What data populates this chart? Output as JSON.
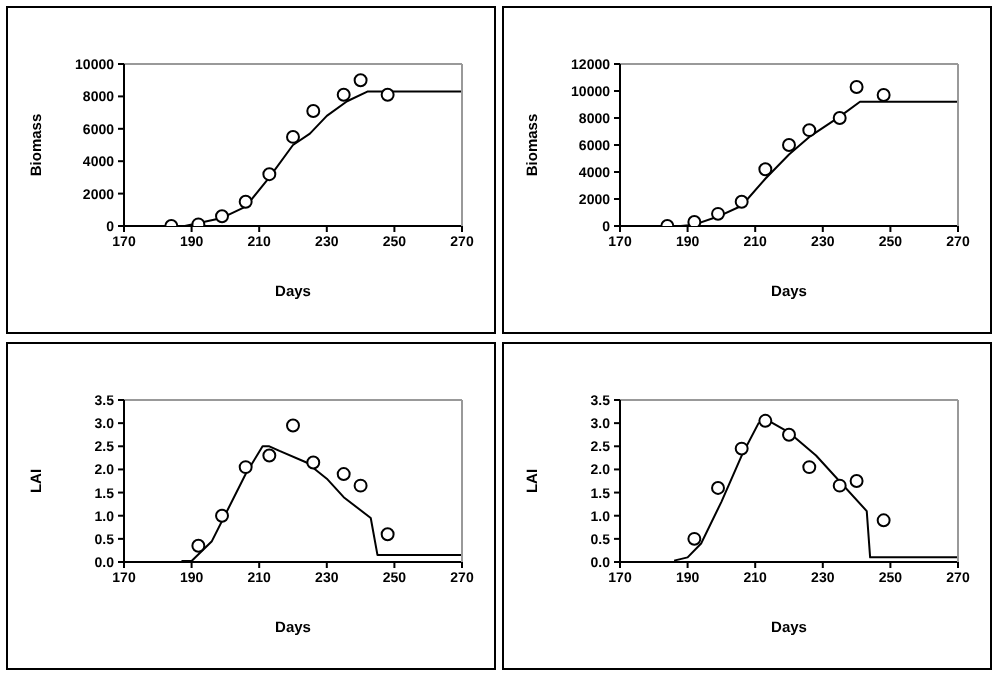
{
  "chart_data": [
    {
      "type": "scatter",
      "xlabel": "Days",
      "ylabel": "Biomass",
      "xlim": [
        170,
        270
      ],
      "xticks": [
        170,
        190,
        210,
        230,
        250,
        270
      ],
      "ylim": [
        0,
        10000
      ],
      "yticks": [
        0,
        2000,
        4000,
        6000,
        8000,
        10000
      ],
      "series": [
        {
          "color": "#000000",
          "marker": "circle",
          "x": [
            184,
            192,
            199,
            206,
            213,
            220,
            226,
            235,
            240,
            248
          ],
          "values": [
            0,
            100,
            600,
            1500,
            3200,
            5500,
            7100,
            8100,
            9000,
            8100
          ]
        },
        {
          "type": "line",
          "color": "#000000",
          "marker": "none",
          "x": [
            188,
            199,
            206,
            213,
            220,
            225,
            230,
            236,
            242,
            270
          ],
          "values": [
            0,
            500,
            1200,
            3000,
            5000,
            5700,
            6800,
            7700,
            8300,
            8300
          ]
        }
      ]
    },
    {
      "type": "scatter",
      "xlabel": "Days",
      "ylabel": "Biomass",
      "xlim": [
        170,
        270
      ],
      "xticks": [
        170,
        190,
        210,
        230,
        250,
        270
      ],
      "ylim": [
        0,
        12000
      ],
      "yticks": [
        0,
        2000,
        4000,
        6000,
        8000,
        10000,
        12000
      ],
      "series": [
        {
          "color": "#000000",
          "marker": "circle",
          "x": [
            184,
            192,
            199,
            206,
            213,
            220,
            226,
            235,
            240,
            248
          ],
          "values": [
            0,
            300,
            900,
            1800,
            4200,
            6000,
            7100,
            8000,
            10300,
            9700
          ]
        },
        {
          "type": "line",
          "color": "#000000",
          "marker": "none",
          "x": [
            188,
            192,
            199,
            206,
            213,
            220,
            226,
            235,
            241,
            270
          ],
          "values": [
            0,
            100,
            700,
            1500,
            3500,
            5300,
            6600,
            8100,
            9200,
            9200
          ]
        }
      ]
    },
    {
      "type": "scatter",
      "xlabel": "Days",
      "ylabel": "LAI",
      "xlim": [
        170,
        270
      ],
      "xticks": [
        170,
        190,
        210,
        230,
        250,
        270
      ],
      "ylim": [
        0,
        3.5
      ],
      "yticks": [
        {
          "value": 0,
          "label": "0.0"
        },
        {
          "value": 0.5,
          "label": "0.5"
        },
        {
          "value": 1,
          "label": "1.0"
        },
        {
          "value": 1.5,
          "label": "1.5"
        },
        {
          "value": 2,
          "label": "2.0"
        },
        {
          "value": 2.5,
          "label": "2.5"
        },
        {
          "value": 3,
          "label": "3.0"
        },
        {
          "value": 3.5,
          "label": "3.5"
        }
      ],
      "series": [
        {
          "color": "#000000",
          "marker": "circle",
          "x": [
            192,
            199,
            206,
            213,
            220,
            226,
            235,
            240,
            248
          ],
          "values": [
            0.35,
            1.0,
            2.05,
            2.3,
            2.95,
            2.15,
            1.9,
            1.65,
            0.6
          ]
        },
        {
          "type": "line",
          "color": "#000000",
          "marker": "none",
          "x": [
            187,
            190,
            196,
            206,
            211,
            213,
            216,
            224,
            230,
            235,
            243,
            245,
            270
          ],
          "values": [
            0.02,
            0.02,
            0.45,
            1.9,
            2.5,
            2.5,
            2.4,
            2.15,
            1.8,
            1.4,
            0.95,
            0.15,
            0.15
          ]
        }
      ]
    },
    {
      "type": "scatter",
      "xlabel": "Days",
      "ylabel": "LAI",
      "xlim": [
        170,
        270
      ],
      "xticks": [
        170,
        190,
        210,
        230,
        250,
        270
      ],
      "ylim": [
        0,
        3.5
      ],
      "yticks": [
        {
          "value": 0,
          "label": "0.0"
        },
        {
          "value": 0.5,
          "label": "0.5"
        },
        {
          "value": 1,
          "label": "1.0"
        },
        {
          "value": 1.5,
          "label": "1.5"
        },
        {
          "value": 2,
          "label": "2.0"
        },
        {
          "value": 2.5,
          "label": "2.5"
        },
        {
          "value": 3,
          "label": "3.0"
        },
        {
          "value": 3.5,
          "label": "3.5"
        }
      ],
      "series": [
        {
          "color": "#000000",
          "marker": "circle",
          "x": [
            192,
            199,
            206,
            213,
            220,
            226,
            235,
            240,
            248
          ],
          "values": [
            0.5,
            1.6,
            2.45,
            3.05,
            2.75,
            2.05,
            1.65,
            1.75,
            0.9
          ]
        },
        {
          "type": "line",
          "color": "#000000",
          "marker": "none",
          "x": [
            186,
            190,
            194,
            200,
            206,
            211,
            214,
            220,
            228,
            243,
            244,
            270
          ],
          "values": [
            0.03,
            0.1,
            0.4,
            1.3,
            2.3,
            3.0,
            3.05,
            2.8,
            2.3,
            1.1,
            0.1,
            0.1
          ]
        }
      ]
    }
  ]
}
